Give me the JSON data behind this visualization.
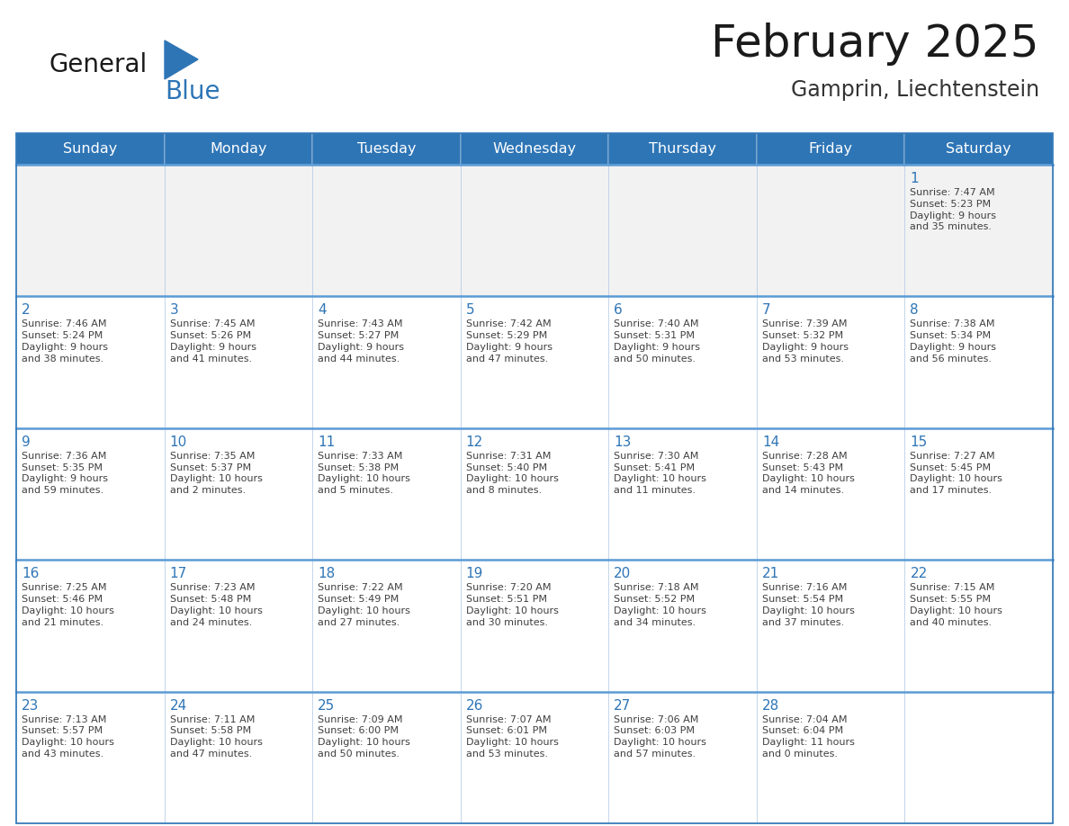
{
  "title": "February 2025",
  "subtitle": "Gamprin, Liechtenstein",
  "header_bg": "#2E75B6",
  "header_text_color": "#FFFFFF",
  "row1_bg": "#F2F2F2",
  "cell_bg": "#FFFFFF",
  "cell_text_color": "#404040",
  "day_number_color": "#2E75B6",
  "border_color": "#2E75B6",
  "row_border_color": "#5B9BD5",
  "days_of_week": [
    "Sunday",
    "Monday",
    "Tuesday",
    "Wednesday",
    "Thursday",
    "Friday",
    "Saturday"
  ],
  "calendar_data": [
    [
      null,
      null,
      null,
      null,
      null,
      null,
      {
        "day": 1,
        "sunrise": "7:47 AM",
        "sunset": "5:23 PM",
        "daylight": "9 hours\nand 35 minutes."
      }
    ],
    [
      {
        "day": 2,
        "sunrise": "7:46 AM",
        "sunset": "5:24 PM",
        "daylight": "9 hours\nand 38 minutes."
      },
      {
        "day": 3,
        "sunrise": "7:45 AM",
        "sunset": "5:26 PM",
        "daylight": "9 hours\nand 41 minutes."
      },
      {
        "day": 4,
        "sunrise": "7:43 AM",
        "sunset": "5:27 PM",
        "daylight": "9 hours\nand 44 minutes."
      },
      {
        "day": 5,
        "sunrise": "7:42 AM",
        "sunset": "5:29 PM",
        "daylight": "9 hours\nand 47 minutes."
      },
      {
        "day": 6,
        "sunrise": "7:40 AM",
        "sunset": "5:31 PM",
        "daylight": "9 hours\nand 50 minutes."
      },
      {
        "day": 7,
        "sunrise": "7:39 AM",
        "sunset": "5:32 PM",
        "daylight": "9 hours\nand 53 minutes."
      },
      {
        "day": 8,
        "sunrise": "7:38 AM",
        "sunset": "5:34 PM",
        "daylight": "9 hours\nand 56 minutes."
      }
    ],
    [
      {
        "day": 9,
        "sunrise": "7:36 AM",
        "sunset": "5:35 PM",
        "daylight": "9 hours\nand 59 minutes."
      },
      {
        "day": 10,
        "sunrise": "7:35 AM",
        "sunset": "5:37 PM",
        "daylight": "10 hours\nand 2 minutes."
      },
      {
        "day": 11,
        "sunrise": "7:33 AM",
        "sunset": "5:38 PM",
        "daylight": "10 hours\nand 5 minutes."
      },
      {
        "day": 12,
        "sunrise": "7:31 AM",
        "sunset": "5:40 PM",
        "daylight": "10 hours\nand 8 minutes."
      },
      {
        "day": 13,
        "sunrise": "7:30 AM",
        "sunset": "5:41 PM",
        "daylight": "10 hours\nand 11 minutes."
      },
      {
        "day": 14,
        "sunrise": "7:28 AM",
        "sunset": "5:43 PM",
        "daylight": "10 hours\nand 14 minutes."
      },
      {
        "day": 15,
        "sunrise": "7:27 AM",
        "sunset": "5:45 PM",
        "daylight": "10 hours\nand 17 minutes."
      }
    ],
    [
      {
        "day": 16,
        "sunrise": "7:25 AM",
        "sunset": "5:46 PM",
        "daylight": "10 hours\nand 21 minutes."
      },
      {
        "day": 17,
        "sunrise": "7:23 AM",
        "sunset": "5:48 PM",
        "daylight": "10 hours\nand 24 minutes."
      },
      {
        "day": 18,
        "sunrise": "7:22 AM",
        "sunset": "5:49 PM",
        "daylight": "10 hours\nand 27 minutes."
      },
      {
        "day": 19,
        "sunrise": "7:20 AM",
        "sunset": "5:51 PM",
        "daylight": "10 hours\nand 30 minutes."
      },
      {
        "day": 20,
        "sunrise": "7:18 AM",
        "sunset": "5:52 PM",
        "daylight": "10 hours\nand 34 minutes."
      },
      {
        "day": 21,
        "sunrise": "7:16 AM",
        "sunset": "5:54 PM",
        "daylight": "10 hours\nand 37 minutes."
      },
      {
        "day": 22,
        "sunrise": "7:15 AM",
        "sunset": "5:55 PM",
        "daylight": "10 hours\nand 40 minutes."
      }
    ],
    [
      {
        "day": 23,
        "sunrise": "7:13 AM",
        "sunset": "5:57 PM",
        "daylight": "10 hours\nand 43 minutes."
      },
      {
        "day": 24,
        "sunrise": "7:11 AM",
        "sunset": "5:58 PM",
        "daylight": "10 hours\nand 47 minutes."
      },
      {
        "day": 25,
        "sunrise": "7:09 AM",
        "sunset": "6:00 PM",
        "daylight": "10 hours\nand 50 minutes."
      },
      {
        "day": 26,
        "sunrise": "7:07 AM",
        "sunset": "6:01 PM",
        "daylight": "10 hours\nand 53 minutes."
      },
      {
        "day": 27,
        "sunrise": "7:06 AM",
        "sunset": "6:03 PM",
        "daylight": "10 hours\nand 57 minutes."
      },
      {
        "day": 28,
        "sunrise": "7:04 AM",
        "sunset": "6:04 PM",
        "daylight": "11 hours\nand 0 minutes."
      },
      null
    ]
  ]
}
